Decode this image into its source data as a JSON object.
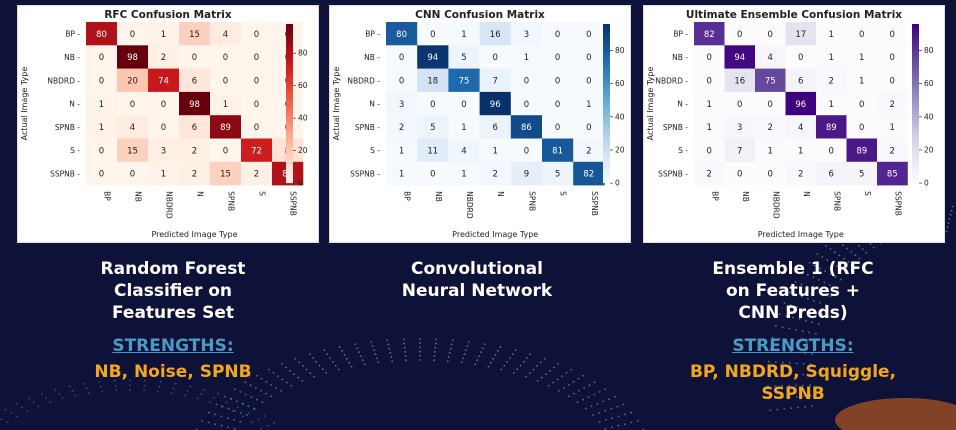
{
  "labels": [
    "BP",
    "NB",
    "NBDRD",
    "N",
    "SPNB",
    "S",
    "SSPNB"
  ],
  "chart_data": [
    {
      "type": "heatmap",
      "title": "RFC Confusion Matrix",
      "xlabel": "Predicted Image Type",
      "ylabel": "Actual Image Type",
      "colormap": "reds",
      "colorbar_ticks": [
        "0",
        "20",
        "40",
        "60",
        "80"
      ],
      "vmax": 98,
      "matrix": [
        [
          80,
          0,
          1,
          15,
          4,
          0,
          0
        ],
        [
          0,
          98,
          2,
          0,
          0,
          0,
          0
        ],
        [
          0,
          20,
          74,
          6,
          0,
          0,
          0
        ],
        [
          1,
          0,
          0,
          98,
          1,
          0,
          0
        ],
        [
          1,
          4,
          0,
          6,
          89,
          0,
          0
        ],
        [
          0,
          15,
          3,
          2,
          0,
          72,
          8
        ],
        [
          0,
          0,
          1,
          2,
          15,
          2,
          80
        ]
      ]
    },
    {
      "type": "heatmap",
      "title": "CNN Confusion Matrix",
      "xlabel": "Predicted Image Type",
      "ylabel": "Actual Image Type",
      "colormap": "blues",
      "colorbar_ticks": [
        "0",
        "20",
        "40",
        "60",
        "80"
      ],
      "vmax": 96,
      "matrix": [
        [
          80,
          0,
          1,
          16,
          3,
          0,
          0
        ],
        [
          0,
          94,
          5,
          0,
          1,
          0,
          0
        ],
        [
          0,
          18,
          75,
          7,
          0,
          0,
          0
        ],
        [
          3,
          0,
          0,
          96,
          0,
          0,
          1
        ],
        [
          2,
          5,
          1,
          6,
          86,
          0,
          0
        ],
        [
          1,
          11,
          4,
          1,
          0,
          81,
          2
        ],
        [
          1,
          0,
          1,
          2,
          9,
          5,
          82
        ]
      ]
    },
    {
      "type": "heatmap",
      "title": "Ultimate Ensemble Confusion Matrix",
      "xlabel": "Predicted Image Type",
      "ylabel": "Actual Image Type",
      "colormap": "purples",
      "colorbar_ticks": [
        "0",
        "20",
        "40",
        "60",
        "80"
      ],
      "vmax": 96,
      "matrix": [
        [
          82,
          0,
          0,
          17,
          1,
          0,
          0
        ],
        [
          0,
          94,
          4,
          0,
          1,
          1,
          0
        ],
        [
          0,
          16,
          75,
          6,
          2,
          1,
          0
        ],
        [
          1,
          0,
          0,
          96,
          1,
          0,
          2
        ],
        [
          1,
          3,
          2,
          4,
          89,
          0,
          1
        ],
        [
          0,
          7,
          1,
          1,
          0,
          89,
          2
        ],
        [
          2,
          0,
          0,
          2,
          6,
          5,
          85
        ]
      ]
    }
  ],
  "captions": [
    {
      "lines": [
        "Random Forest",
        "Classifier on",
        "Features Set"
      ],
      "strengths_label": "STRENGTHS:",
      "strengths_lines": [
        "NB, Noise, SPNB"
      ]
    },
    {
      "lines": [
        "Convolutional",
        "Neural Network"
      ]
    },
    {
      "lines": [
        "Ensemble 1 (RFC",
        "on Features +",
        "CNN Preds)"
      ],
      "strengths_label": "STRENGTHS:",
      "strengths_lines": [
        "BP, NBDRD, Squiggle,",
        "SSPNB"
      ]
    }
  ],
  "colors": {
    "background": "#0f1238",
    "strength_label": "#4a9bc4",
    "strength_value": "#f2a71c"
  }
}
